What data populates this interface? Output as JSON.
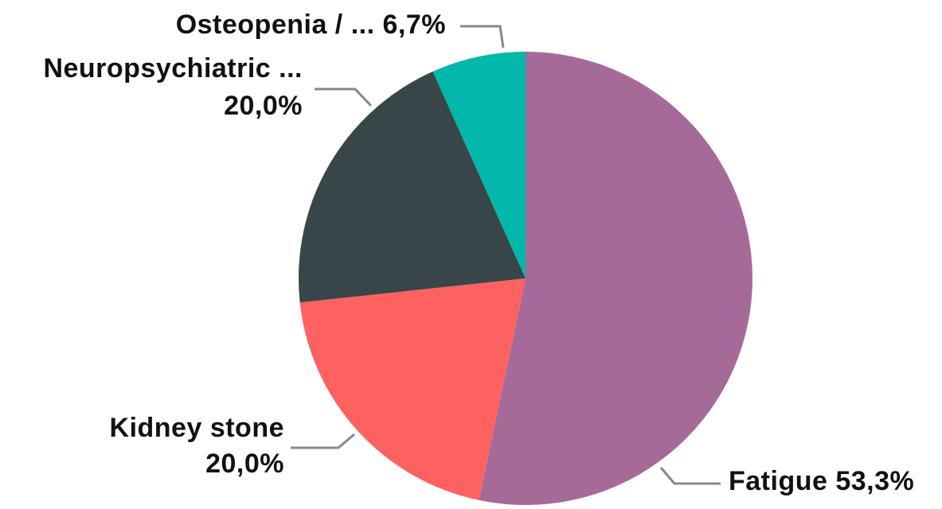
{
  "chart_data": {
    "type": "pie",
    "categories": [
      "Fatigue",
      "Kidney stone",
      "Neuropsychiatric ...",
      "Osteopenia / ..."
    ],
    "values": [
      53.3,
      20.0,
      20.0,
      6.7
    ],
    "value_labels": [
      "53,3%",
      "20,0%",
      "20,0%",
      "6,7%"
    ],
    "colors": [
      "#a66a99",
      "#fd6260",
      "#384649",
      "#02b8aa"
    ]
  }
}
